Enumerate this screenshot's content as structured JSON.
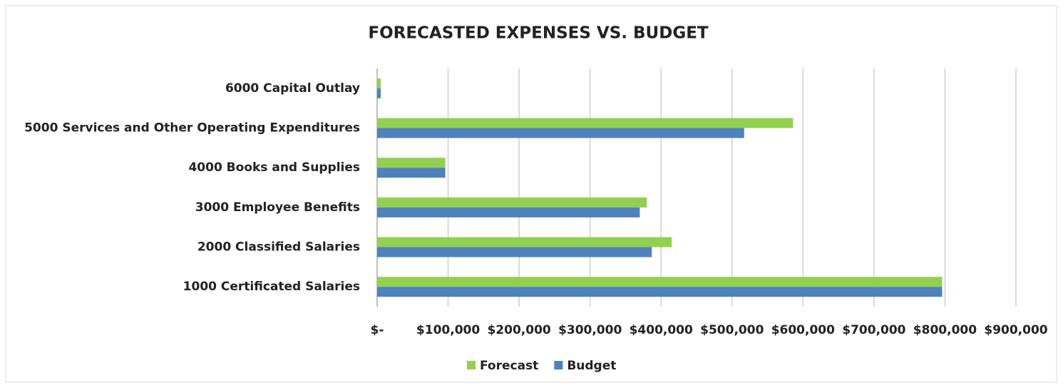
{
  "chart_data": {
    "type": "hbar",
    "title": "FORECASTED EXPENSES VS. BUDGET",
    "categories": [
      "1000 Certificated Salaries",
      "2000 Classified Salaries",
      "3000 Employee Benefits",
      "4000 Books and Supplies",
      "5000 Services and Other Operating Expenditures",
      "6000 Capital Outlay"
    ],
    "series": [
      {
        "name": "Forecast",
        "color": "#92d050",
        "values": [
          796000,
          415000,
          380000,
          96000,
          586000,
          5000
        ]
      },
      {
        "name": "Budget",
        "color": "#4f81bd",
        "values": [
          796000,
          387000,
          370000,
          96000,
          517000,
          5000
        ]
      }
    ],
    "xlim": [
      0,
      900000
    ],
    "xticks": [
      {
        "value": 0,
        "label": "$-"
      },
      {
        "value": 100000,
        "label": "$100,000"
      },
      {
        "value": 200000,
        "label": "$200,000"
      },
      {
        "value": 300000,
        "label": "$300,000"
      },
      {
        "value": 400000,
        "label": "$400,000"
      },
      {
        "value": 500000,
        "label": "$500,000"
      },
      {
        "value": 600000,
        "label": "$600,000"
      },
      {
        "value": 700000,
        "label": "$700,000"
      },
      {
        "value": 800000,
        "label": "$800,000"
      },
      {
        "value": 900000,
        "label": "$900,000"
      }
    ],
    "grid": true,
    "legend": "bottom"
  }
}
